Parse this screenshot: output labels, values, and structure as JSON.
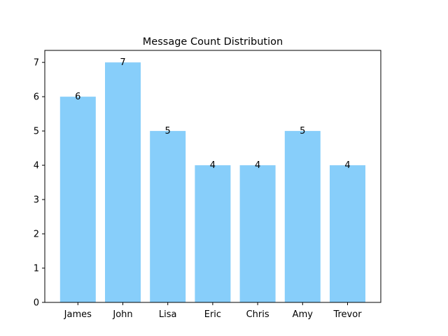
{
  "chart_data": {
    "type": "bar",
    "title": "Message Count Distribution",
    "xlabel": "",
    "ylabel": "",
    "categories": [
      "James",
      "John",
      "Lisa",
      "Eric",
      "Chris",
      "Amy",
      "Trevor"
    ],
    "values": [
      6,
      7,
      5,
      4,
      4,
      5,
      4
    ],
    "data_labels": [
      "6",
      "7",
      "5",
      "4",
      "4",
      "5",
      "4"
    ],
    "ylim": [
      0,
      7.35
    ],
    "yticks": [
      0,
      1,
      2,
      3,
      4,
      5,
      6,
      7
    ],
    "ytick_labels": [
      "0",
      "1",
      "2",
      "3",
      "4",
      "5",
      "6",
      "7"
    ],
    "grid": false,
    "legend": "none",
    "bar_color": "#87CEFA",
    "axis_color": "#000000"
  }
}
